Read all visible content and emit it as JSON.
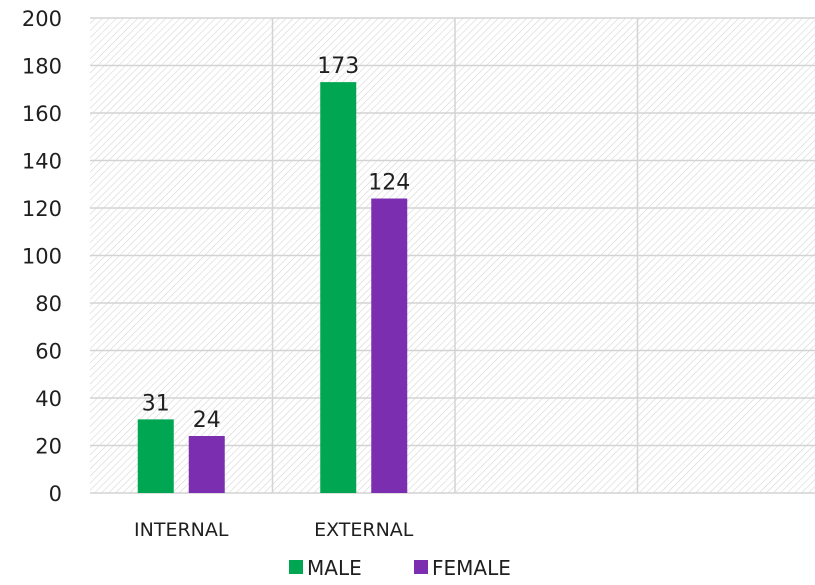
{
  "chart_data": {
    "type": "bar",
    "categories": [
      "INTERNAL",
      "EXTERNAL",
      "",
      ""
    ],
    "series": [
      {
        "name": "MALE",
        "color": "#00a651",
        "values": [
          31,
          173,
          null,
          null
        ]
      },
      {
        "name": "FEMALE",
        "color": "#7b2fb0",
        "values": [
          24,
          124,
          null,
          null
        ]
      }
    ],
    "data_labels": [
      [
        "31",
        "173"
      ],
      [
        "24",
        "124"
      ]
    ],
    "ylim": [
      0,
      200
    ],
    "yticks": [
      0,
      20,
      40,
      60,
      80,
      100,
      120,
      140,
      160,
      180,
      200
    ],
    "ytick_labels": [
      "0",
      "20",
      "40",
      "60",
      "80",
      "100",
      "120",
      "140",
      "160",
      "180",
      "200"
    ],
    "grid": true,
    "background_pattern": "diagonal-hatch",
    "legend": {
      "position": "bottom",
      "items": [
        "MALE",
        "FEMALE"
      ]
    }
  }
}
